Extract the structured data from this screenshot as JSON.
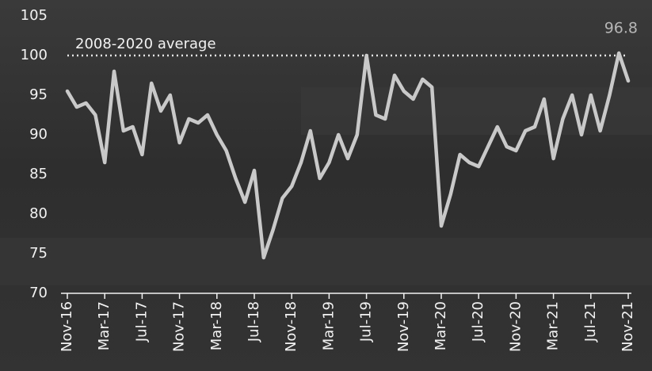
{
  "chart_data": {
    "type": "line",
    "categories": [
      "Nov-16",
      null,
      null,
      null,
      "Mar-17",
      null,
      null,
      null,
      "Jul-17",
      null,
      null,
      null,
      "Nov-17",
      null,
      null,
      null,
      "Mar-18",
      null,
      null,
      null,
      "Jul-18",
      null,
      null,
      null,
      "Nov-18",
      null,
      null,
      null,
      "Mar-19",
      null,
      null,
      null,
      "Jul-19",
      null,
      null,
      null,
      "Nov-19",
      null,
      null,
      null,
      "Mar-20",
      null,
      null,
      null,
      "Jul-20",
      null,
      null,
      null,
      "Nov-20",
      null,
      null,
      null,
      "Mar-21",
      null,
      null,
      null,
      "Jul-21",
      null,
      null,
      null,
      "Nov-21"
    ],
    "values": [
      95.5,
      93.5,
      94,
      92.5,
      86.5,
      98,
      90.5,
      91,
      87.5,
      96.5,
      93,
      95,
      89,
      92,
      91.5,
      92.5,
      90,
      88,
      84.5,
      81.5,
      85.5,
      74.5,
      78,
      82,
      83.5,
      86.5,
      90.5,
      84.5,
      86.5,
      90,
      87,
      90,
      100,
      92.5,
      92,
      97.5,
      95.5,
      94.5,
      97,
      96,
      78.5,
      82.5,
      87.5,
      86.5,
      86,
      88.5,
      91,
      88.5,
      88,
      90.5,
      91,
      94.5,
      87,
      92,
      95,
      90,
      95,
      90.5,
      95,
      100.3,
      96.8
    ],
    "color": "#c9c9c9",
    "ylim": [
      70,
      105
    ],
    "yticks": [
      70,
      75,
      80,
      85,
      90,
      95,
      100,
      105
    ],
    "grid": false,
    "reference_line": {
      "value": 100,
      "label": "2008-2020 average"
    }
  }
}
